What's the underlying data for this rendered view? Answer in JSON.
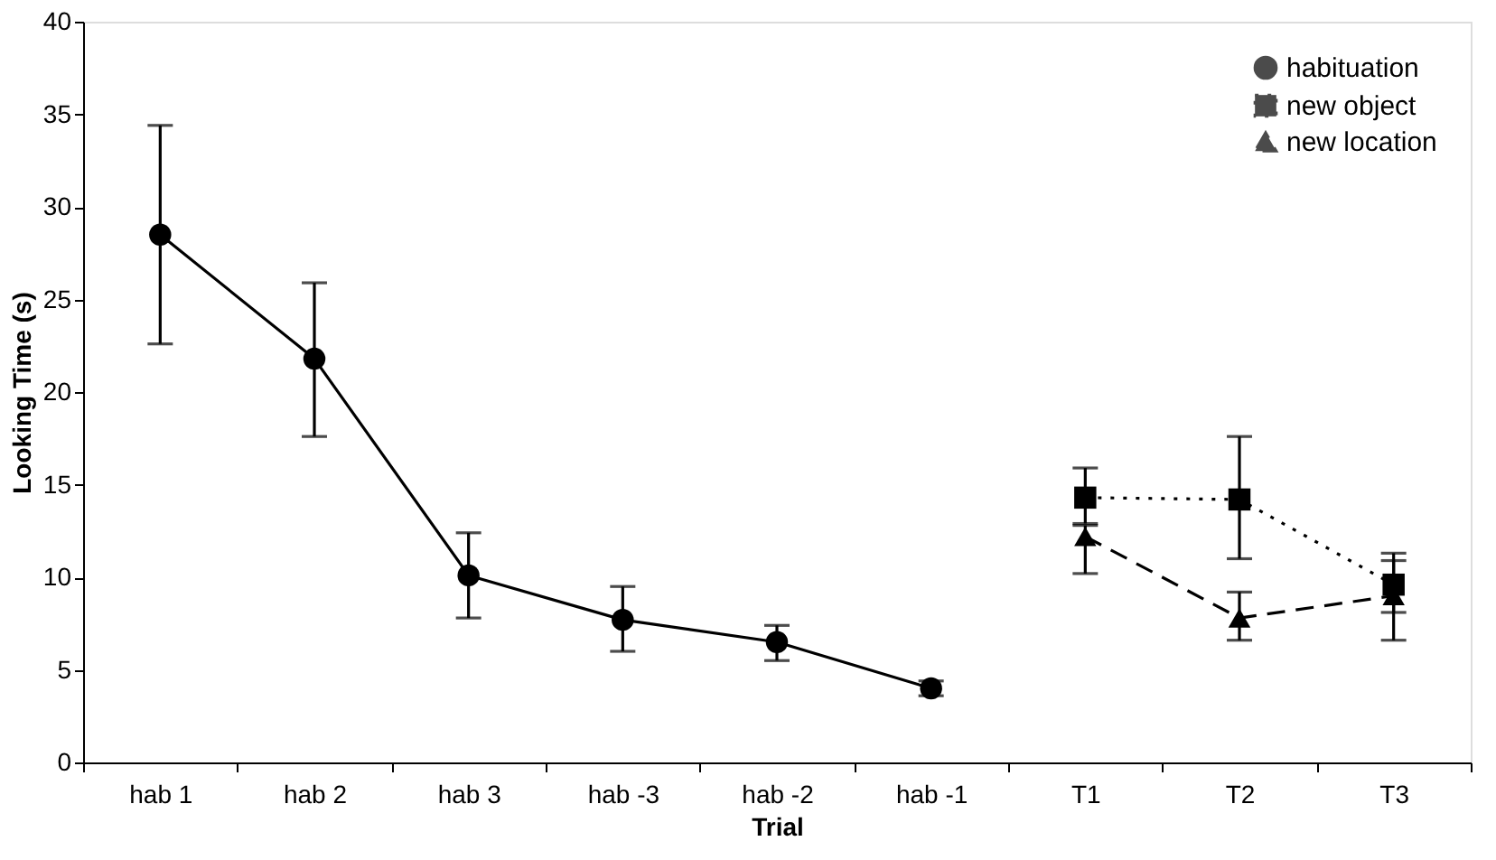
{
  "chart_data": {
    "type": "line",
    "xlabel": "Trial",
    "ylabel": "Looking Time (s)",
    "categories": [
      "hab 1",
      "hab 2",
      "hab 3",
      "hab -3",
      "hab -2",
      "hab -1",
      "T1",
      "T2",
      "T3"
    ],
    "ylim": [
      0,
      40
    ],
    "yticks": [
      0,
      5,
      10,
      15,
      20,
      25,
      30,
      35,
      40
    ],
    "grid": false,
    "legend": "top right",
    "series": [
      {
        "name": "habituation",
        "color": "#000000",
        "marker": "circle",
        "line_style": "solid",
        "values": [
          28.5,
          21.8,
          10.1,
          7.7,
          6.5,
          4.0,
          null,
          null,
          null
        ],
        "errors": [
          [
            22.6,
            34.4
          ],
          [
            17.6,
            25.9
          ],
          [
            7.8,
            12.4
          ],
          [
            6.0,
            9.5
          ],
          [
            5.5,
            7.4
          ],
          [
            3.6,
            4.4
          ],
          null,
          null,
          null
        ]
      },
      {
        "name": "new object",
        "color": "#000000",
        "marker": "square",
        "line_style": "dotted",
        "values": [
          null,
          null,
          null,
          null,
          null,
          null,
          14.3,
          14.2,
          9.6
        ],
        "errors": [
          null,
          null,
          null,
          null,
          null,
          null,
          [
            12.9,
            15.9
          ],
          [
            11.0,
            17.6
          ],
          [
            8.1,
            11.3
          ]
        ]
      },
      {
        "name": "new location",
        "color": "#000000",
        "marker": "triangle",
        "line_style": "dashed",
        "values": [
          null,
          null,
          null,
          null,
          null,
          null,
          12.2,
          7.8,
          9.0
        ],
        "errors": [
          null,
          null,
          null,
          null,
          null,
          null,
          [
            10.2,
            12.8
          ],
          [
            6.6,
            9.2
          ],
          [
            6.6,
            10.9
          ]
        ]
      }
    ]
  }
}
